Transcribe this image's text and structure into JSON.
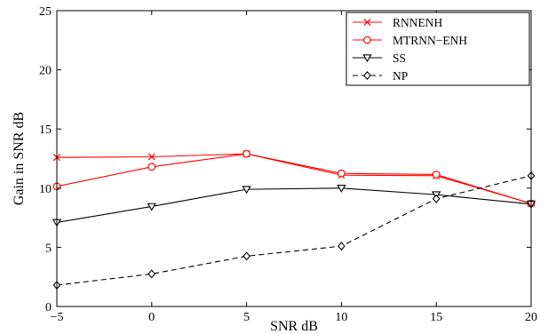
{
  "chart_data": {
    "type": "line",
    "xlabel": "SNR dB",
    "ylabel": "Gain in SNR dB",
    "x": [
      -5,
      0,
      5,
      10,
      15,
      20
    ],
    "xlim": [
      -5,
      20
    ],
    "ylim": [
      0,
      25
    ],
    "xticks": [
      -5,
      0,
      5,
      10,
      15,
      20
    ],
    "yticks": [
      0,
      5,
      10,
      15,
      20,
      25
    ],
    "grid": false,
    "legend_position": "top-right",
    "series": [
      {
        "name": "RNNENH",
        "values": [
          12.6,
          12.65,
          12.9,
          11.1,
          11.05,
          8.7
        ],
        "color": "#ff0000",
        "marker": "x",
        "dash": "solid"
      },
      {
        "name": "MTRNN−ENH",
        "values": [
          10.15,
          11.8,
          12.9,
          11.25,
          11.15,
          8.7
        ],
        "color": "#ff0000",
        "marker": "circle",
        "dash": "solid"
      },
      {
        "name": "SS",
        "values": [
          7.1,
          8.45,
          9.9,
          10.0,
          9.45,
          8.65
        ],
        "color": "#000000",
        "marker": "triangle-down",
        "dash": "solid"
      },
      {
        "name": "NP",
        "values": [
          1.8,
          2.75,
          4.25,
          5.1,
          9.1,
          11.05
        ],
        "color": "#000000",
        "marker": "diamond",
        "dash": "dashed"
      }
    ]
  }
}
